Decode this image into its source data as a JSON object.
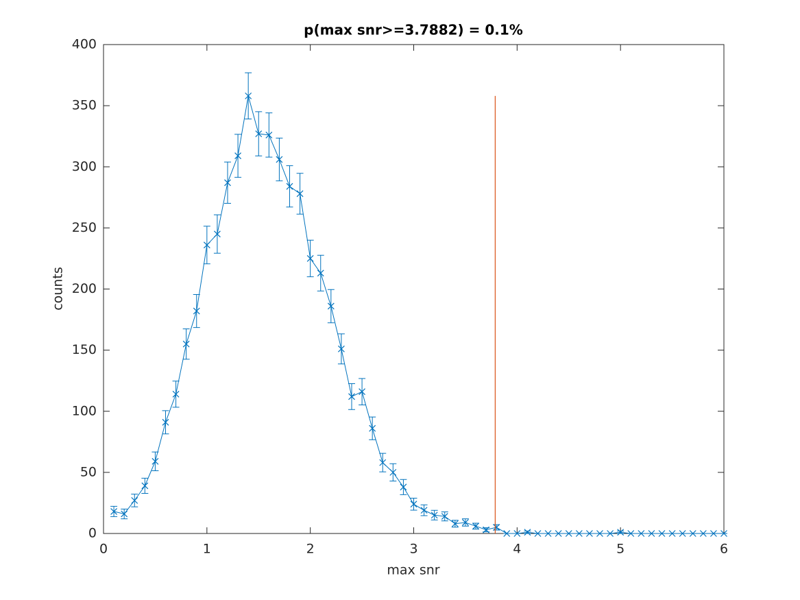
{
  "chart_data": {
    "type": "errorbar",
    "title": "p(max snr>=3.7882) = 0.1%",
    "x_label": "max snr",
    "y_label": "counts",
    "x": [
      0.1,
      0.2,
      0.3,
      0.4,
      0.5,
      0.6,
      0.7,
      0.8,
      0.9,
      1.0,
      1.1,
      1.2,
      1.3,
      1.4,
      1.5,
      1.6,
      1.7,
      1.8,
      1.9,
      2.0,
      2.1,
      2.2,
      2.3,
      2.4,
      2.5,
      2.6,
      2.7,
      2.8,
      2.9,
      3.0,
      3.1,
      3.2,
      3.3,
      3.4,
      3.5,
      3.6,
      3.7,
      3.8,
      3.9,
      4.0,
      4.1,
      4.2,
      4.3,
      4.4,
      4.5,
      4.6,
      4.7,
      4.8,
      4.9,
      5.0,
      5.1,
      5.2,
      5.3,
      5.4,
      5.5,
      5.6,
      5.7,
      5.8,
      5.9,
      6.0
    ],
    "series": [
      {
        "color": "#0072bd",
        "values": [
          18,
          16,
          27,
          39,
          59,
          91,
          114,
          155,
          182,
          236,
          245,
          287,
          309,
          358,
          327,
          326,
          306,
          284,
          278,
          225,
          213,
          186,
          151,
          112,
          116,
          86,
          58,
          50,
          38,
          24,
          19,
          15,
          14,
          8,
          9,
          6,
          3,
          5,
          0,
          0,
          1,
          0,
          0,
          0,
          0,
          0,
          0,
          0,
          0,
          1,
          0,
          0,
          0,
          0,
          0,
          0,
          0,
          0,
          0,
          0
        ],
        "errors": [
          4.2,
          4,
          5.2,
          6.2,
          7.7,
          9.5,
          10.7,
          12.4,
          13.5,
          15.4,
          15.7,
          16.9,
          17.6,
          18.9,
          18.1,
          18.1,
          17.5,
          16.9,
          16.7,
          15,
          14.6,
          13.6,
          12.3,
          10.6,
          10.8,
          9.3,
          7.6,
          7.1,
          6.2,
          4.9,
          4.4,
          3.9,
          3.7,
          2.8,
          3,
          2.4,
          1.7,
          2.2,
          0,
          0,
          1,
          0,
          0,
          0,
          0,
          0,
          0,
          0,
          0,
          1,
          0,
          0,
          0,
          0,
          0,
          0,
          0,
          0,
          0,
          0
        ]
      }
    ],
    "threshold_line": {
      "x": 3.7882,
      "y": [
        0,
        358
      ],
      "color": "#d95319"
    },
    "xlim": [
      0,
      6
    ],
    "xticks": [
      0,
      1,
      2,
      3,
      4,
      5,
      6
    ],
    "ylim": [
      0,
      400
    ],
    "yticks": [
      0,
      50,
      100,
      150,
      200,
      250,
      300,
      350,
      400
    ]
  }
}
